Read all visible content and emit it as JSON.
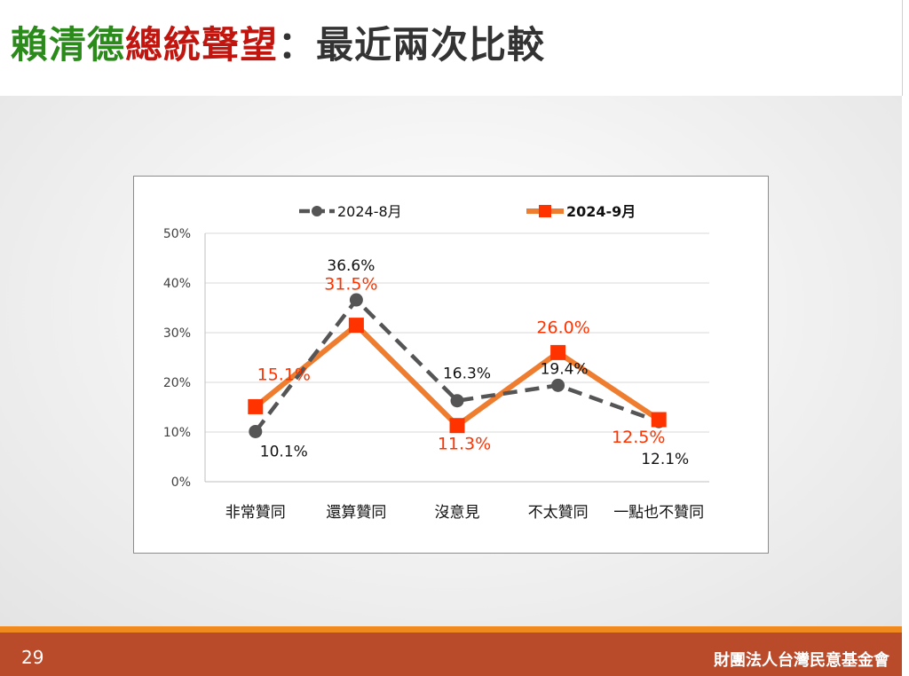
{
  "slide": {
    "title_parts": [
      {
        "text": "賴清德",
        "color": "#2a8a1a"
      },
      {
        "text": "總統聲望",
        "color": "#c0160f"
      },
      {
        "text": "：最近兩次比較",
        "color": "#333333"
      }
    ],
    "page_number": "29",
    "organization": "財團法人台灣民意基金會"
  },
  "colors": {
    "footer": "#b94a2a",
    "accent_line": "#f08a1e",
    "series_aug": "#555555",
    "series_sep": "#ef7d30",
    "series_sep_marker": "#ff3300",
    "label_sep": "#ff3300"
  },
  "chart_data": {
    "type": "line",
    "categories": [
      "非常贊同",
      "還算贊同",
      "沒意見",
      "不太贊同",
      "一點也不贊同"
    ],
    "y_ticks": [
      "0%",
      "10%",
      "20%",
      "30%",
      "40%",
      "50%"
    ],
    "ylim": [
      0,
      50
    ],
    "grid": true,
    "legend_position": "top",
    "series": [
      {
        "name": "2024-8月",
        "values": [
          10.1,
          36.6,
          16.3,
          19.4,
          12.1
        ],
        "labels": [
          "10.1%",
          "36.6%",
          "16.3%",
          "19.4%",
          "12.1%"
        ],
        "style": "dashed",
        "marker": "circle"
      },
      {
        "name": "2024-9月",
        "values": [
          15.1,
          31.5,
          11.3,
          26.0,
          12.5
        ],
        "labels": [
          "15.1%",
          "31.5%",
          "11.3%",
          "26.0%",
          "12.5%"
        ],
        "style": "solid",
        "marker": "square"
      }
    ]
  }
}
